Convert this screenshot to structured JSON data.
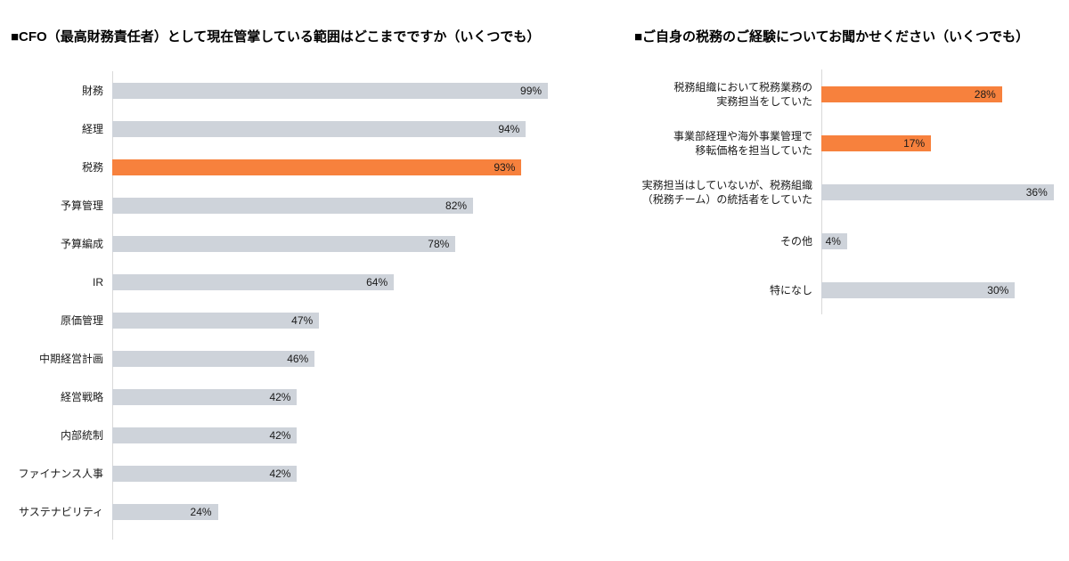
{
  "colors": {
    "bar_default": "#CED3DA",
    "bar_highlight": "#F7813D",
    "axis_line": "#D9D9D9",
    "label_text": "#1A1A1A",
    "value_text": "#1A1A1A",
    "title_text": "#000000",
    "background": "#FFFFFF"
  },
  "chart_data": [
    {
      "type": "bar",
      "orientation": "horizontal",
      "title": "■CFO（最高財務責任者）として現在管掌している範囲はどこまでですか（いくつでも）",
      "unit": "%",
      "xlim": [
        0,
        100
      ],
      "grid": false,
      "legend": false,
      "value_labels": "inside-end",
      "items": [
        {
          "label": "財務",
          "value": 99,
          "highlight": false
        },
        {
          "label": "経理",
          "value": 94,
          "highlight": false
        },
        {
          "label": "税務",
          "value": 93,
          "highlight": true
        },
        {
          "label": "予算管理",
          "value": 82,
          "highlight": false
        },
        {
          "label": "予算編成",
          "value": 78,
          "highlight": false
        },
        {
          "label": "IR",
          "value": 64,
          "highlight": false
        },
        {
          "label": "原価管理",
          "value": 47,
          "highlight": false
        },
        {
          "label": "中期経営計画",
          "value": 46,
          "highlight": false
        },
        {
          "label": "経営戦略",
          "value": 42,
          "highlight": false
        },
        {
          "label": "内部統制",
          "value": 42,
          "highlight": false
        },
        {
          "label": "ファイナンス人事",
          "value": 42,
          "highlight": false
        },
        {
          "label": "サステナビリティ",
          "value": 24,
          "highlight": false
        }
      ]
    },
    {
      "type": "bar",
      "orientation": "horizontal",
      "title": "■ご自身の税務のご経験についてお聞かせください（いくつでも）",
      "unit": "%",
      "xlim": [
        0,
        37
      ],
      "grid": false,
      "legend": false,
      "value_labels": "inside-end",
      "items": [
        {
          "label": "税務組織において税務業務の\n実務担当をしていた",
          "value": 28,
          "highlight": true
        },
        {
          "label": "事業部経理や海外事業管理で\n移転価格を担当していた",
          "value": 17,
          "highlight": true
        },
        {
          "label": "実務担当はしていないが、税務組織\n（税務チーム）の統括者をしていた",
          "value": 36,
          "highlight": false
        },
        {
          "label": "その他",
          "value": 4,
          "highlight": false
        },
        {
          "label": "特になし",
          "value": 30,
          "highlight": false
        }
      ]
    }
  ]
}
